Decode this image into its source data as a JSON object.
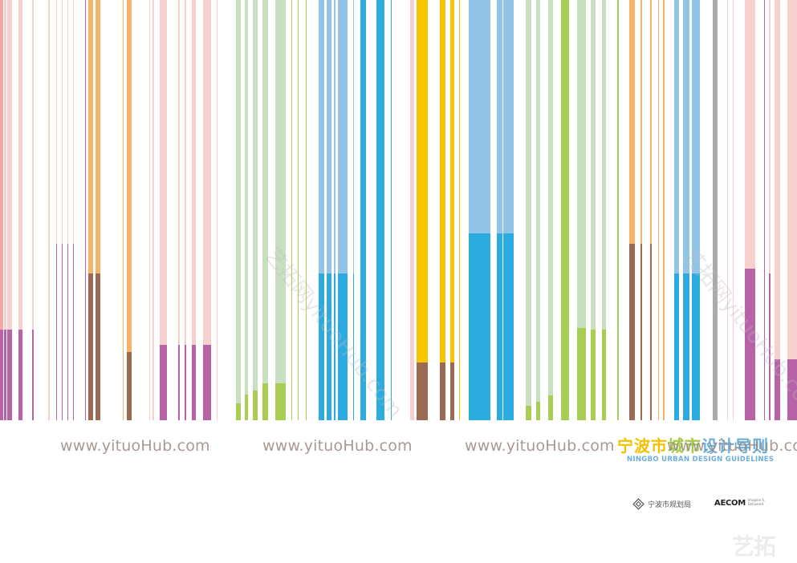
{
  "colors": {
    "pink": "#f5d0cc",
    "salmon": "#efaaa6",
    "magenta": "#b862a8",
    "orange": "#f4b56a",
    "brown": "#9a6a52",
    "green_light": "#c8dfc0",
    "green": "#a8cd52",
    "blue_light": "#92c4e8",
    "blue": "#2cabe1",
    "yellow": "#f8c400",
    "grey": "#aaaaaa",
    "title_yellow": "#f2c200",
    "title_green": "#a6cc44",
    "title_blue": "#6bb0dc"
  },
  "watermarks": [
    "www.yituoHub.com",
    "www.yituoHub.com",
    "www.yituoHub.com",
    "www.yituoHub.com"
  ],
  "diagonal_watermarks": [
    "艺拓网yituoHub.com",
    "艺拓网yituoHub.com"
  ],
  "title": {
    "cn": "宁波市城市设计导则",
    "en": "NINGBO URBAN DESIGN GUIDELINES"
  },
  "logos": {
    "bureau": "宁波市规划局",
    "aecom": "AECOM",
    "aecom_tagline": "Imagine it. Delivered.",
    "corner": "艺拓"
  }
}
